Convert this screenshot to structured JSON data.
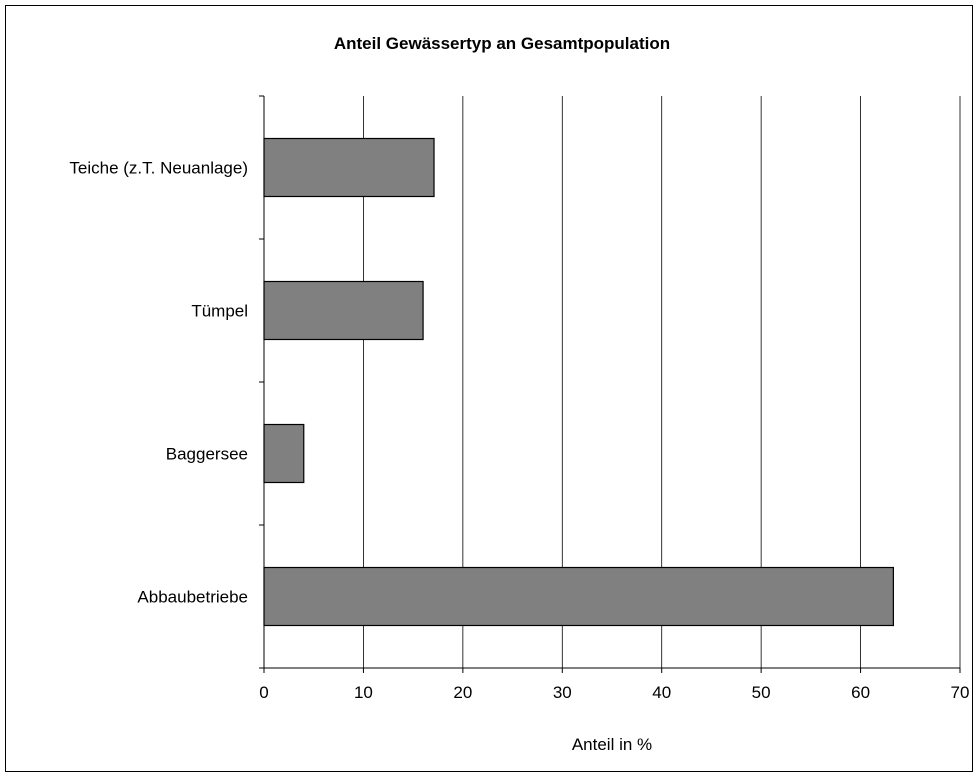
{
  "chart_data": {
    "type": "bar",
    "orientation": "horizontal",
    "title": "Anteil Gewässertyp an Gesamtpopulation",
    "xlabel": "Anteil in %",
    "ylabel": "",
    "categories": [
      "Teiche (z.T. Neuanlage)",
      "Tümpel",
      "Baggersee",
      "Abbaubetriebe"
    ],
    "values": [
      17.1,
      16,
      4,
      63.3
    ],
    "xlim": [
      0,
      70
    ],
    "x_ticks": [
      0,
      10,
      20,
      30,
      40,
      50,
      60,
      70
    ],
    "grid": "vertical",
    "legend": "none",
    "bar_color": "#808080",
    "bar_edge_color": "#000000",
    "grid_color": "#000000"
  }
}
